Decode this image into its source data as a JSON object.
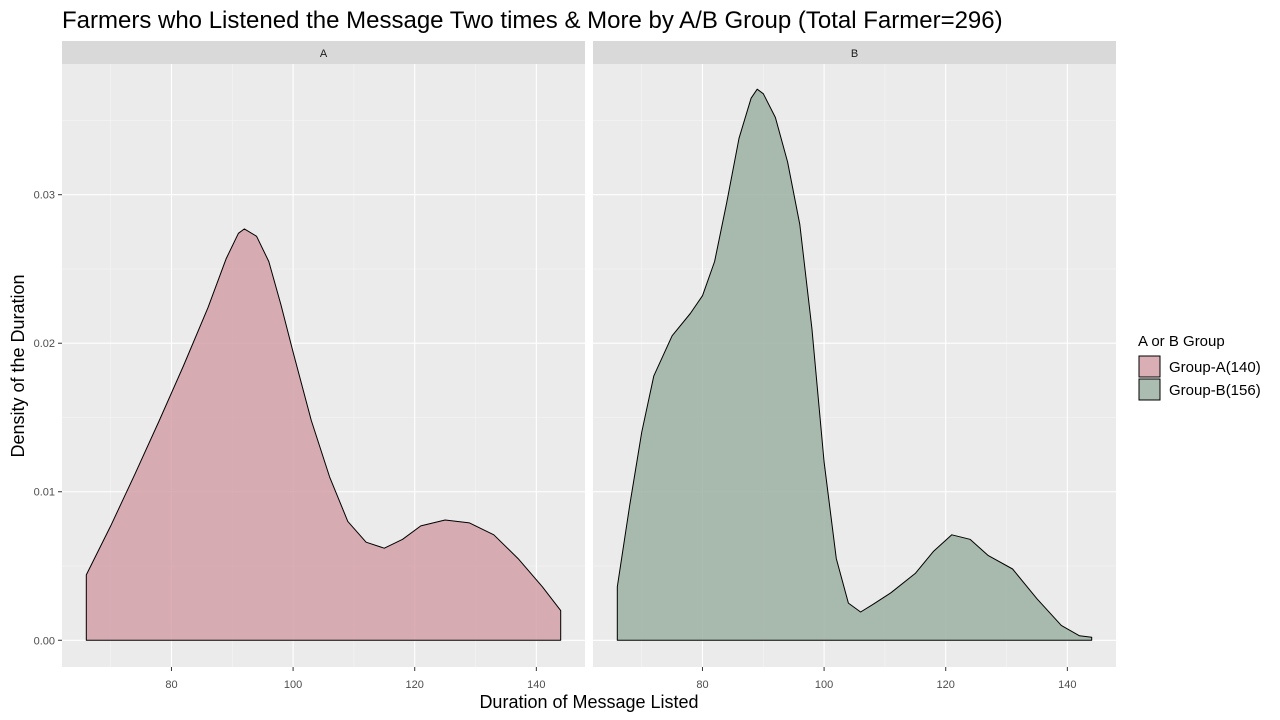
{
  "chart_data": {
    "type": "area",
    "title": "Farmers who Listened the Message Two times & More by A/B Group (Total Farmer=296)",
    "xlabel": "Duration of Message Listed",
    "ylabel": "Density of the Duration",
    "xlim": [
      62,
      148
    ],
    "ylim": [
      -0.0018,
      0.0388
    ],
    "x_ticks": [
      80,
      100,
      120,
      140
    ],
    "x_tick_labels": [
      "80",
      "100",
      "120",
      "140"
    ],
    "y_ticks": [
      0,
      0.01,
      0.02,
      0.03
    ],
    "y_tick_labels": [
      "0.00",
      "0.01",
      "0.02",
      "0.03"
    ],
    "grid": true,
    "legend": {
      "title": "A or B Group",
      "position": "right"
    },
    "panels": [
      {
        "strip": "A",
        "series_name": "Group-A(140)",
        "color": "#d4a0a8",
        "points": [
          [
            66,
            0.0044
          ],
          [
            70,
            0.0077
          ],
          [
            74,
            0.0112
          ],
          [
            78,
            0.0148
          ],
          [
            82,
            0.0185
          ],
          [
            86,
            0.0224
          ],
          [
            89,
            0.0257
          ],
          [
            91,
            0.0274
          ],
          [
            92,
            0.0277
          ],
          [
            94,
            0.0272
          ],
          [
            96,
            0.0255
          ],
          [
            98,
            0.0226
          ],
          [
            100,
            0.0194
          ],
          [
            103,
            0.0148
          ],
          [
            106,
            0.011
          ],
          [
            109,
            0.008
          ],
          [
            112,
            0.0066
          ],
          [
            115,
            0.0062
          ],
          [
            118,
            0.0068
          ],
          [
            121,
            0.0077
          ],
          [
            125,
            0.0081
          ],
          [
            129,
            0.0079
          ],
          [
            133,
            0.0071
          ],
          [
            137,
            0.0055
          ],
          [
            141,
            0.0036
          ],
          [
            144,
            0.002
          ]
        ]
      },
      {
        "strip": "B",
        "series_name": "Group-B(156)",
        "color": "#9cb0a2",
        "points": [
          [
            66,
            0.0036
          ],
          [
            68,
            0.009
          ],
          [
            70,
            0.014
          ],
          [
            72,
            0.0178
          ],
          [
            75,
            0.0205
          ],
          [
            78,
            0.022
          ],
          [
            80,
            0.0232
          ],
          [
            82,
            0.0255
          ],
          [
            84,
            0.0295
          ],
          [
            86,
            0.0338
          ],
          [
            88,
            0.0365
          ],
          [
            89,
            0.0371
          ],
          [
            90,
            0.0368
          ],
          [
            92,
            0.0352
          ],
          [
            94,
            0.0322
          ],
          [
            96,
            0.028
          ],
          [
            98,
            0.021
          ],
          [
            100,
            0.012
          ],
          [
            102,
            0.0055
          ],
          [
            104,
            0.0025
          ],
          [
            106,
            0.0019
          ],
          [
            108,
            0.0024
          ],
          [
            111,
            0.0032
          ],
          [
            115,
            0.0045
          ],
          [
            118,
            0.006
          ],
          [
            121,
            0.0071
          ],
          [
            124,
            0.0068
          ],
          [
            127,
            0.0057
          ],
          [
            131,
            0.0048
          ],
          [
            135,
            0.0028
          ],
          [
            139,
            0.001
          ],
          [
            142,
            0.0003
          ],
          [
            144,
            0.0002
          ]
        ]
      }
    ]
  }
}
